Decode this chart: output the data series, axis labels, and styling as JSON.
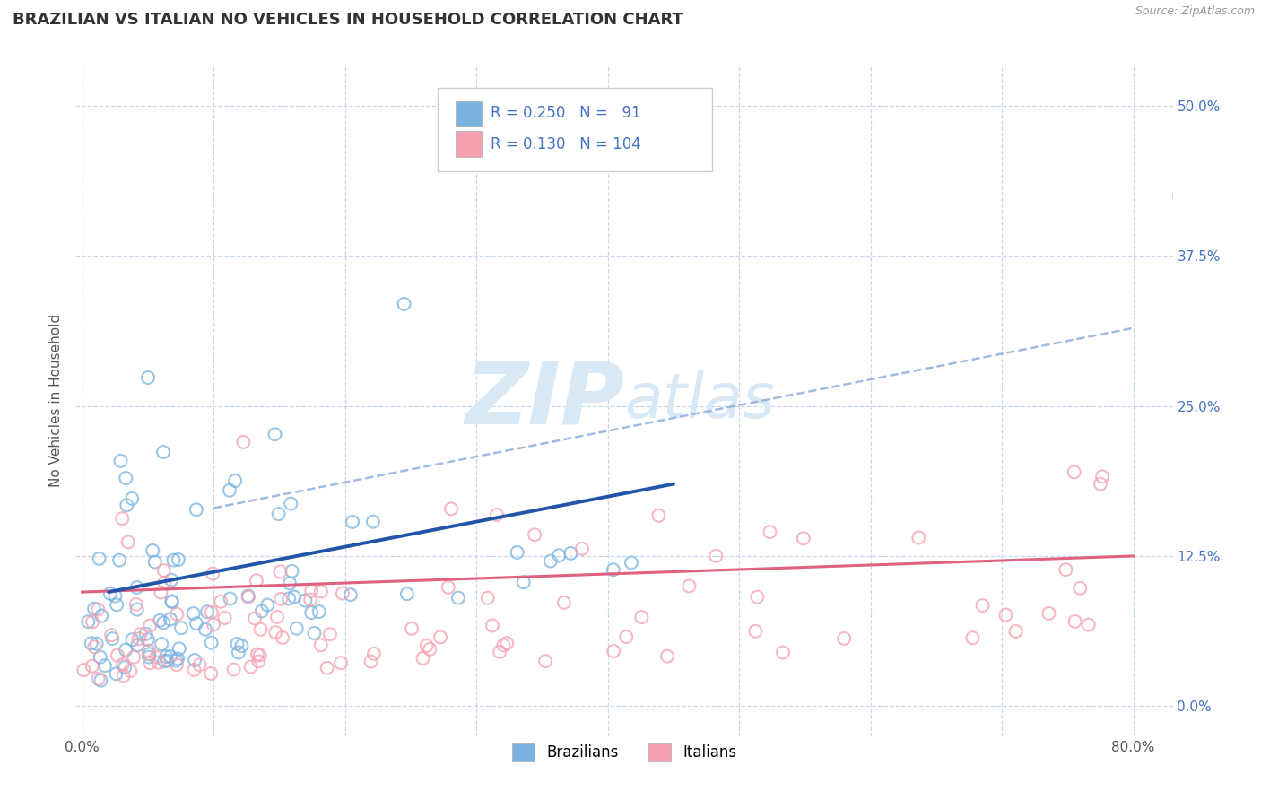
{
  "title": "BRAZILIAN VS ITALIAN NO VEHICLES IN HOUSEHOLD CORRELATION CHART",
  "source_text": "Source: ZipAtlas.com",
  "ylabel": "No Vehicles in Household",
  "xlim": [
    -0.005,
    0.83
  ],
  "ylim": [
    -0.025,
    0.535
  ],
  "ytick_values": [
    0.0,
    0.125,
    0.25,
    0.375,
    0.5
  ],
  "xtick_values": [
    0.0,
    0.8
  ],
  "grid_ytick_values": [
    0.0,
    0.125,
    0.25,
    0.375,
    0.5
  ],
  "grid_xtick_values": [
    0.0,
    0.1,
    0.2,
    0.3,
    0.4,
    0.5,
    0.6,
    0.7,
    0.8
  ],
  "grid_color": "#c8d8ea",
  "background_color": "#ffffff",
  "brazilian_color": "#7ab3e0",
  "italian_color": "#f4a0b0",
  "trend_blue_color": "#2255aa",
  "trend_dashed_color": "#88aadd",
  "trend_pink_color": "#e06080",
  "tick_color": "#4472c4",
  "legend_label_blue": "Brazilians",
  "legend_label_pink": "Italians",
  "R_blue": 0.25,
  "N_blue": 91,
  "R_pink": 0.13,
  "N_pink": 104,
  "watermark_color": "#d8e8f4",
  "title_fontsize": 13,
  "source_fontsize": 9
}
